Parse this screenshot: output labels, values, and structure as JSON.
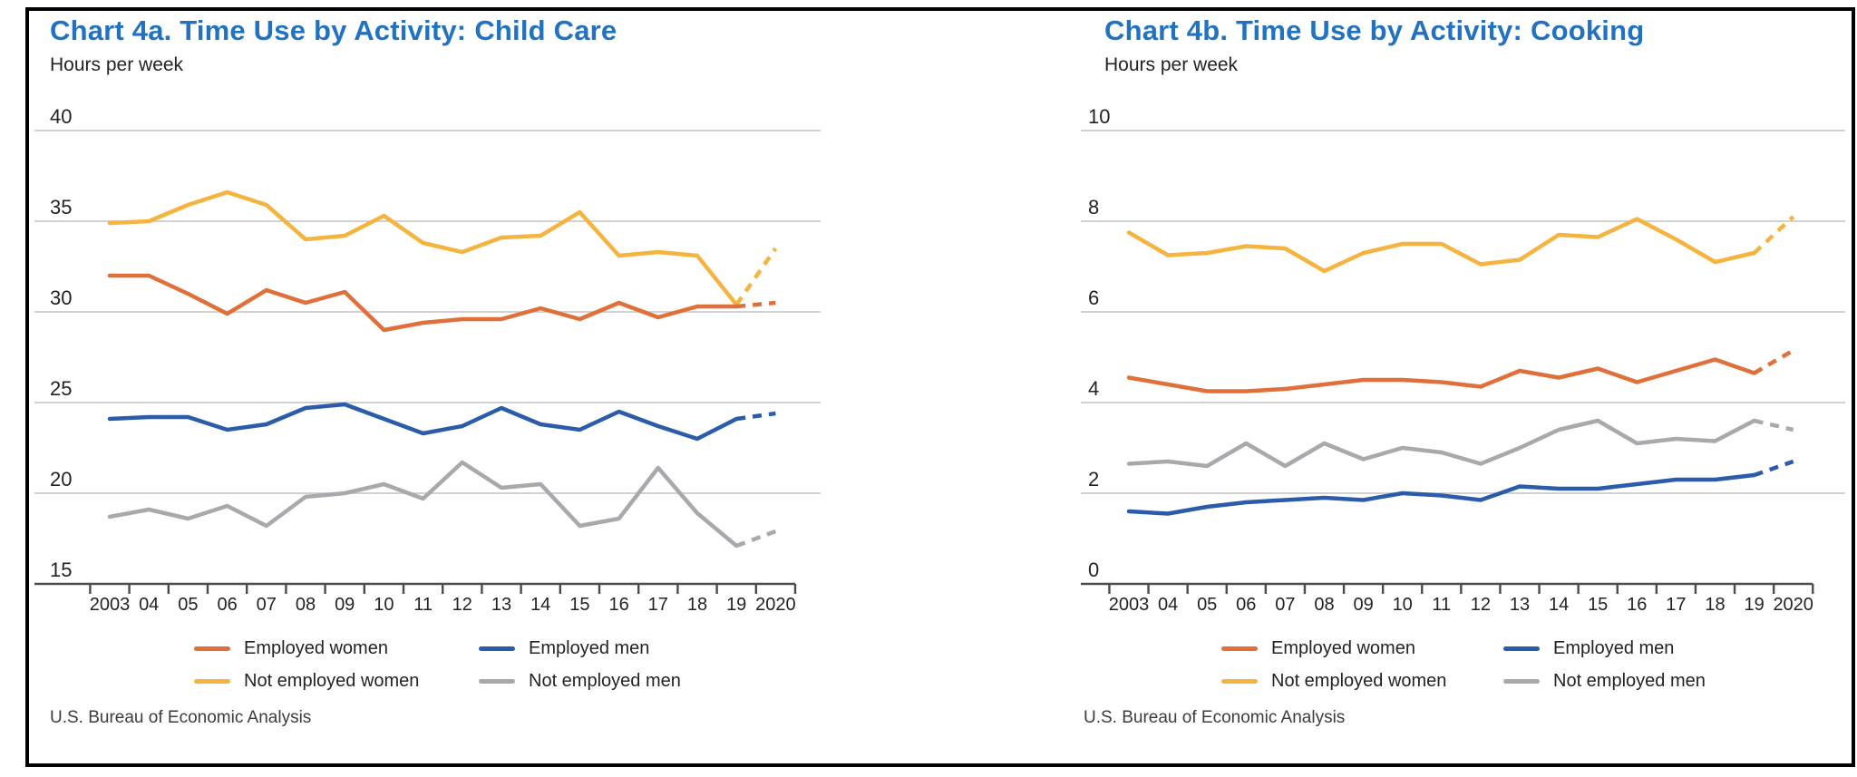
{
  "colors": {
    "title": "#2272c3",
    "employed_women": "#e0703a",
    "not_employed_women": "#f5b43f",
    "employed_men": "#2a5caa",
    "not_employed_men": "#a7a9ac",
    "grid": "#cbcbcb",
    "axis": "#4a4b4d",
    "text": "#262223"
  },
  "source_note": "U.S. Bureau of Economic Analysis",
  "legend": [
    {
      "label": "Employed women",
      "color_key": "employed_women"
    },
    {
      "label": "Employed men",
      "color_key": "employed_men"
    },
    {
      "label": "Not employed women",
      "color_key": "not_employed_women"
    },
    {
      "label": "Not employed men",
      "color_key": "not_employed_men"
    }
  ],
  "chart_data": [
    {
      "type": "line",
      "title_prefix": "Chart 4a. Time Use by Activity:",
      "title_activity": "Child Care",
      "unit_label": "Hours per week",
      "x_labels": [
        "2003",
        "04",
        "05",
        "06",
        "07",
        "08",
        "09",
        "10",
        "11",
        "12",
        "13",
        "14",
        "15",
        "16",
        "17",
        "18",
        "19",
        "2020"
      ],
      "ylim": [
        15,
        40
      ],
      "yticks": [
        40,
        35,
        30,
        25,
        20,
        15
      ],
      "grid": true,
      "legend_position": "bottom",
      "dashed_final_segment": true,
      "series": [
        {
          "name": "Not employed women",
          "color_key": "not_employed_women",
          "values": [
            34.9,
            35.0,
            35.9,
            36.6,
            35.9,
            34.0,
            34.2,
            35.3,
            33.8,
            33.3,
            34.1,
            34.2,
            35.5,
            33.1,
            33.3,
            33.1,
            30.4,
            33.5
          ]
        },
        {
          "name": "Not employed men",
          "color_key": "not_employed_men",
          "values": [
            18.7,
            19.1,
            18.6,
            19.3,
            18.2,
            19.8,
            20.0,
            20.5,
            19.7,
            21.7,
            20.3,
            20.5,
            18.2,
            18.6,
            21.4,
            18.9,
            17.1,
            17.9
          ]
        },
        {
          "name": "Employed men",
          "color_key": "employed_men",
          "values": [
            24.1,
            24.2,
            24.2,
            23.5,
            23.8,
            24.7,
            24.9,
            24.1,
            23.3,
            23.7,
            24.7,
            23.8,
            23.5,
            24.5,
            23.7,
            23.0,
            24.1,
            24.4
          ]
        },
        {
          "name": "Employed women",
          "color_key": "employed_women",
          "values": [
            32.0,
            32.0,
            31.0,
            29.9,
            31.2,
            30.5,
            31.1,
            29.0,
            29.4,
            29.6,
            29.6,
            30.2,
            29.6,
            30.5,
            29.7,
            30.3,
            30.3,
            30.5
          ]
        }
      ]
    },
    {
      "type": "line",
      "title_prefix": "Chart 4b. Time Use by Activity:",
      "title_activity": "Cooking",
      "unit_label": "Hours per week",
      "x_labels": [
        "2003",
        "04",
        "05",
        "06",
        "07",
        "08",
        "09",
        "10",
        "11",
        "12",
        "13",
        "14",
        "15",
        "16",
        "17",
        "18",
        "19",
        "2020"
      ],
      "ylim": [
        0,
        10
      ],
      "yticks": [
        10,
        8,
        6,
        4,
        2,
        0
      ],
      "grid": true,
      "legend_position": "bottom",
      "dashed_final_segment": true,
      "series": [
        {
          "name": "Not employed women",
          "color_key": "not_employed_women",
          "values": [
            7.75,
            7.25,
            7.3,
            7.45,
            7.4,
            6.9,
            7.3,
            7.5,
            7.5,
            7.05,
            7.15,
            7.7,
            7.65,
            8.05,
            7.6,
            7.1,
            7.3,
            8.1
          ]
        },
        {
          "name": "Not employed men",
          "color_key": "not_employed_men",
          "values": [
            2.65,
            2.7,
            2.6,
            3.1,
            2.6,
            3.1,
            2.75,
            3.0,
            2.9,
            2.65,
            3.0,
            3.4,
            3.6,
            3.1,
            3.2,
            3.15,
            3.6,
            3.4
          ]
        },
        {
          "name": "Employed men",
          "color_key": "employed_men",
          "values": [
            1.6,
            1.55,
            1.7,
            1.8,
            1.85,
            1.9,
            1.85,
            2.0,
            1.95,
            1.85,
            2.15,
            2.1,
            2.1,
            2.2,
            2.3,
            2.3,
            2.4,
            2.7
          ]
        },
        {
          "name": "Employed women",
          "color_key": "employed_women",
          "values": [
            4.55,
            4.4,
            4.25,
            4.25,
            4.3,
            4.4,
            4.5,
            4.5,
            4.45,
            4.35,
            4.7,
            4.55,
            4.75,
            4.45,
            4.7,
            4.95,
            4.65,
            5.15
          ]
        }
      ]
    }
  ]
}
